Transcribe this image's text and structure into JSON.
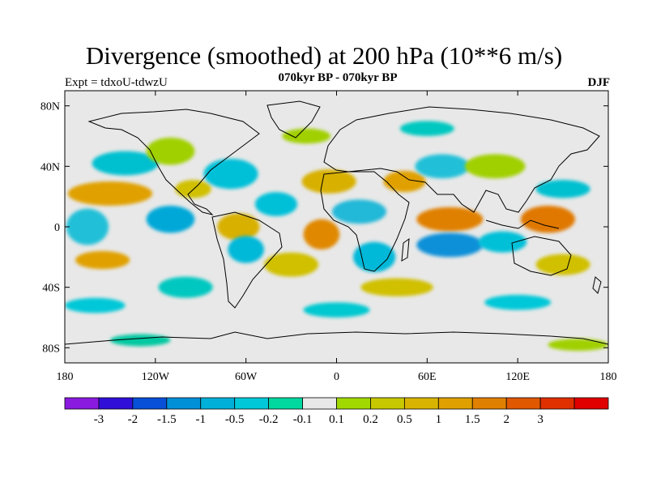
{
  "header": {
    "title": "Divergence (smoothed) at 200 hPa (10**6 m/s)",
    "subtitle": "070kyr BP - 070kyr BP",
    "experiment": "Expt = tdxoU-tdwzU",
    "season": "DJF"
  },
  "map": {
    "background_color": "#e8e8e8",
    "lat_range": [
      -90,
      90
    ],
    "lon_range": [
      -180,
      180
    ],
    "lat_ticks": [
      {
        "value": 80,
        "label": "80N"
      },
      {
        "value": 40,
        "label": "40N"
      },
      {
        "value": 0,
        "label": "0"
      },
      {
        "value": -40,
        "label": "40S"
      },
      {
        "value": -80,
        "label": "80S"
      }
    ],
    "lon_ticks": [
      {
        "value": -180,
        "label": "180"
      },
      {
        "value": -120,
        "label": "120W"
      },
      {
        "value": -60,
        "label": "60W"
      },
      {
        "value": 0,
        "label": "0"
      },
      {
        "value": 60,
        "label": "60E"
      },
      {
        "value": 120,
        "label": "120E"
      },
      {
        "value": 180,
        "label": "180"
      }
    ],
    "fields": [
      {
        "lon": -165,
        "lat": 0,
        "rx": 14,
        "ry": 12,
        "color": "#20c0d8"
      },
      {
        "lon": -150,
        "lat": 22,
        "rx": 28,
        "ry": 8,
        "color": "#e0a000"
      },
      {
        "lon": -140,
        "lat": 42,
        "rx": 22,
        "ry": 8,
        "color": "#00c0d0"
      },
      {
        "lon": -155,
        "lat": -22,
        "rx": 18,
        "ry": 6,
        "color": "#e0a000"
      },
      {
        "lon": -160,
        "lat": -52,
        "rx": 20,
        "ry": 5,
        "color": "#00c8d8"
      },
      {
        "lon": -110,
        "lat": 5,
        "rx": 16,
        "ry": 9,
        "color": "#00a8d8"
      },
      {
        "lon": -110,
        "lat": 50,
        "rx": 16,
        "ry": 9,
        "color": "#a0d000"
      },
      {
        "lon": -95,
        "lat": 25,
        "rx": 12,
        "ry": 6,
        "color": "#d0c000"
      },
      {
        "lon": -70,
        "lat": 35,
        "rx": 18,
        "ry": 10,
        "color": "#00c0d8"
      },
      {
        "lon": -65,
        "lat": 0,
        "rx": 14,
        "ry": 9,
        "color": "#d8b000"
      },
      {
        "lon": -60,
        "lat": -15,
        "rx": 12,
        "ry": 9,
        "color": "#00b8d8"
      },
      {
        "lon": -40,
        "lat": 15,
        "rx": 14,
        "ry": 8,
        "color": "#00c0d8"
      },
      {
        "lon": -30,
        "lat": -25,
        "rx": 18,
        "ry": 8,
        "color": "#d0c000"
      },
      {
        "lon": -10,
        "lat": -5,
        "rx": 12,
        "ry": 10,
        "color": "#e08800"
      },
      {
        "lon": -5,
        "lat": 30,
        "rx": 18,
        "ry": 8,
        "color": "#d8b000"
      },
      {
        "lon": 15,
        "lat": 10,
        "rx": 18,
        "ry": 8,
        "color": "#20b8d8"
      },
      {
        "lon": 25,
        "lat": -20,
        "rx": 14,
        "ry": 10,
        "color": "#00b8d8"
      },
      {
        "lon": 40,
        "lat": -40,
        "rx": 24,
        "ry": 6,
        "color": "#d0c000"
      },
      {
        "lon": 45,
        "lat": 30,
        "rx": 14,
        "ry": 7,
        "color": "#e0a000"
      },
      {
        "lon": 70,
        "lat": 40,
        "rx": 18,
        "ry": 8,
        "color": "#20c0d8"
      },
      {
        "lon": 75,
        "lat": 5,
        "rx": 22,
        "ry": 8,
        "color": "#e08000"
      },
      {
        "lon": 75,
        "lat": -12,
        "rx": 22,
        "ry": 8,
        "color": "#1090d8"
      },
      {
        "lon": 110,
        "lat": -10,
        "rx": 16,
        "ry": 7,
        "color": "#00c0d8"
      },
      {
        "lon": 105,
        "lat": 40,
        "rx": 20,
        "ry": 8,
        "color": "#a0d000"
      },
      {
        "lon": 140,
        "lat": 5,
        "rx": 18,
        "ry": 9,
        "color": "#e07800"
      },
      {
        "lon": 150,
        "lat": 25,
        "rx": 18,
        "ry": 6,
        "color": "#00c0d0"
      },
      {
        "lon": 150,
        "lat": -25,
        "rx": 18,
        "ry": 7,
        "color": "#d0c000"
      },
      {
        "lon": 120,
        "lat": -50,
        "rx": 22,
        "ry": 5,
        "color": "#00c8d8"
      },
      {
        "lon": -100,
        "lat": -40,
        "rx": 18,
        "ry": 7,
        "color": "#00c8c0"
      },
      {
        "lon": 0,
        "lat": -55,
        "rx": 22,
        "ry": 5,
        "color": "#00c8d0"
      },
      {
        "lon": -20,
        "lat": 60,
        "rx": 16,
        "ry": 5,
        "color": "#a0d000"
      },
      {
        "lon": 60,
        "lat": 65,
        "rx": 18,
        "ry": 5,
        "color": "#00c8c0"
      },
      {
        "lon": -130,
        "lat": -75,
        "rx": 20,
        "ry": 4,
        "color": "#00c8a0"
      },
      {
        "lon": 160,
        "lat": -78,
        "rx": 20,
        "ry": 4,
        "color": "#a0d000"
      }
    ]
  },
  "colorbar": {
    "colors": [
      "#8a1ae0",
      "#3010d8",
      "#0850d8",
      "#0090d8",
      "#00b0d8",
      "#00c8d8",
      "#00d8a0",
      "#e8e8e8",
      "#a0d800",
      "#c8c800",
      "#d8b400",
      "#e0a000",
      "#e08000",
      "#e05800",
      "#e03000",
      "#e00000"
    ],
    "labels": [
      "-3",
      "-2",
      "-1.5",
      "-1",
      "-0.5",
      "-0.2",
      "-0.1",
      "0.1",
      "0.2",
      "0.5",
      "1",
      "1.5",
      "2",
      "3"
    ]
  }
}
